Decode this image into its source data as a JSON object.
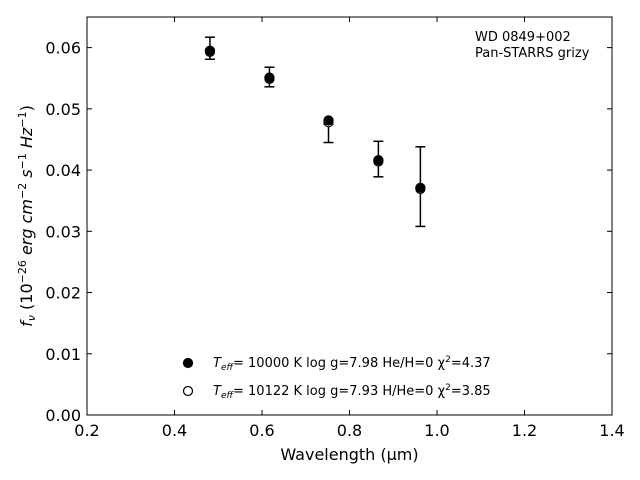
{
  "chart_data": {
    "type": "scatter",
    "xlabel": "Wavelength (μm)",
    "ylabel_parts": [
      "f",
      "ν",
      " (10",
      "−26",
      " erg cm",
      "−2",
      " s",
      "−1",
      " Hz",
      "−1",
      ")"
    ],
    "xlim": [
      0.2,
      1.4
    ],
    "ylim": [
      0.0,
      0.065
    ],
    "xticks": [
      0.2,
      0.4,
      0.6,
      0.8,
      1.0,
      1.2,
      1.4
    ],
    "xtick_labels": [
      "0.2",
      "0.4",
      "0.6",
      "0.8",
      "1.0",
      "1.2",
      "1.4"
    ],
    "yticks": [
      0.0,
      0.01,
      0.02,
      0.03,
      0.04,
      0.05,
      0.06
    ],
    "ytick_labels": [
      "0.00",
      "0.01",
      "0.02",
      "0.03",
      "0.04",
      "0.05",
      "0.06"
    ],
    "grid": false,
    "annotation": [
      "WD 0849+002",
      "Pan-STARRS grizy"
    ],
    "observed": {
      "x": [
        0.481,
        0.617,
        0.752,
        0.866,
        0.962
      ],
      "y": [
        0.0599,
        0.0552,
        0.046,
        0.0418,
        0.0373
      ],
      "yerr": [
        0.0018,
        0.0016,
        0.0015,
        0.0029,
        0.0065
      ]
    },
    "series": [
      {
        "label_parts": [
          "T",
          "eff",
          "= 10000 K  log g=7.98  He/H=0  χ",
          "2",
          "=4.37"
        ],
        "marker": "filled-circle",
        "x": [
          0.481,
          0.617,
          0.752,
          0.866,
          0.962
        ],
        "y": [
          0.0595,
          0.0551,
          0.0481,
          0.0416,
          0.0371
        ]
      },
      {
        "label_parts": [
          "T",
          "eff",
          "= 10122 K  log g=7.93  H/He=0  χ",
          "2",
          "=3.85"
        ],
        "marker": "open-circle",
        "x": [
          0.481,
          0.617,
          0.752,
          0.866,
          0.962
        ],
        "y": [
          0.0593,
          0.0549,
          0.0478,
          0.0414,
          0.0369
        ]
      }
    ],
    "legend_location": "lower-center"
  }
}
